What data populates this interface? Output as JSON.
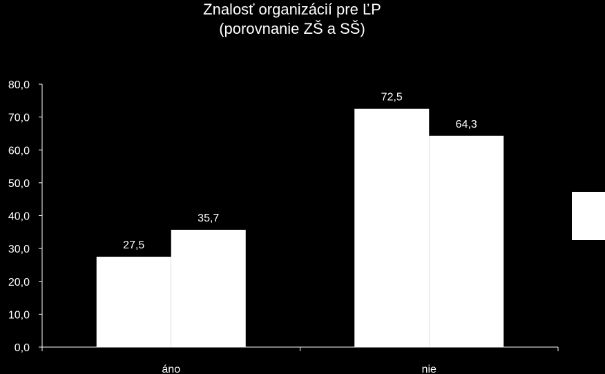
{
  "colors": {
    "background": "#000000",
    "bars": "#ffffff",
    "axis": "#ffffff",
    "text": "#ffffff"
  },
  "chart_data": {
    "type": "bar",
    "title": "Znalosť organizácií pre ĽP",
    "subtitle": "(porovnanie ZŠ a SŠ)",
    "categories": [
      "áno",
      "nie"
    ],
    "series": [
      {
        "values": [
          27.5,
          72.5
        ],
        "labels": [
          "27,5",
          "72,5"
        ]
      },
      {
        "values": [
          35.7,
          64.3
        ],
        "labels": [
          "35,7",
          "64,3"
        ]
      }
    ],
    "ylim": [
      0,
      80
    ],
    "yticks": [
      0,
      10,
      20,
      30,
      40,
      50,
      60,
      70,
      80
    ],
    "ytick_labels": [
      "0,0",
      "10,0",
      "20,0",
      "30,0",
      "40,0",
      "50,0",
      "60,0",
      "70,0",
      "80,0"
    ],
    "grid": false,
    "legend": "right"
  }
}
